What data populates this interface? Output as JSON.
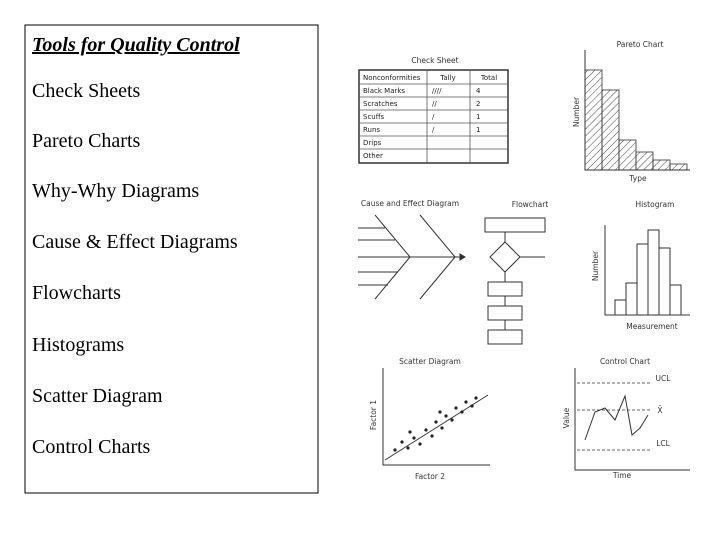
{
  "slide": {
    "title": "Tools for Quality Control",
    "items": [
      "Check Sheets",
      "Pareto Charts",
      "Why-Why Diagrams",
      "Cause & Effect Diagrams",
      "Flowcharts",
      "Histograms",
      "Scatter Diagram",
      "Control Charts"
    ]
  },
  "figure": {
    "check_sheet": {
      "title": "Check Sheet",
      "header": [
        "Nonconformities",
        "Tally",
        "Total"
      ],
      "rows": [
        [
          "Black Marks",
          "////",
          "4"
        ],
        [
          "Scratches",
          "//",
          "2"
        ],
        [
          "Scuffs",
          "/",
          "1"
        ],
        [
          "Runs",
          "/",
          "1"
        ],
        [
          "Drips"
        ],
        [
          "Other"
        ]
      ]
    },
    "pareto": {
      "title": "Pareto Chart",
      "y_label": "Number",
      "x_label": "Type"
    },
    "cause_effect": {
      "title": "Cause and Effect Diagram"
    },
    "flowchart": {
      "title": "Flowchart"
    },
    "histogram": {
      "title": "Histogram",
      "y_label": "Number",
      "x_label": "Measurement"
    },
    "scatter": {
      "title": "Scatter Diagram",
      "y_label": "Factor 1",
      "x_label": "Factor 2"
    },
    "control": {
      "title": "Control Chart",
      "ucl": "UCL",
      "mean": "X̄",
      "lcl": "LCL",
      "y_label": "Value",
      "x_label": "Time"
    }
  }
}
